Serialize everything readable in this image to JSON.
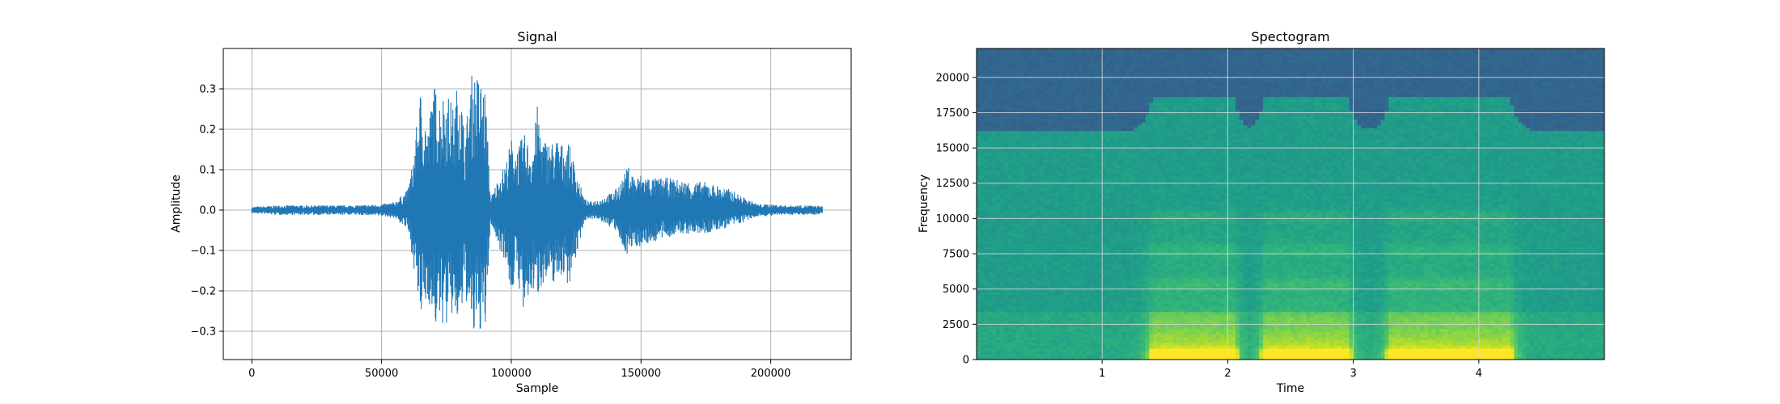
{
  "colors": {
    "signal_line": "#1f77b4",
    "grid": "#b0b0b0",
    "axes": "#000000",
    "spectrogram_low": "#31688e",
    "spectrogram_mid": "#21a685",
    "spectrogram_high": "#e8e41a"
  },
  "chart_data": [
    {
      "type": "line",
      "title": "Signal",
      "xlabel": "Sample",
      "ylabel": "Amplitude",
      "xlim": [
        -11000,
        231000
      ],
      "ylim": [
        -0.37,
        0.4
      ],
      "xticks": [
        0,
        50000,
        100000,
        150000,
        200000
      ],
      "yticks": [
        -0.3,
        -0.2,
        -0.1,
        0.0,
        0.1,
        0.2,
        0.3
      ],
      "xtick_labels": [
        "0",
        "50000",
        "100000",
        "150000",
        "200000"
      ],
      "ytick_labels": [
        "−0.3",
        "−0.2",
        "−0.1",
        "0.0",
        "0.1",
        "0.2",
        "0.3"
      ],
      "grid": true,
      "series": [
        {
          "x": [
            0,
            10000,
            20000,
            30000,
            40000,
            50000,
            55000,
            60000,
            62000,
            65000,
            68000,
            70000,
            72000,
            75000,
            78000,
            80000,
            82000,
            85000,
            88000,
            90000,
            92000,
            95000,
            98000,
            100000,
            102000,
            105000,
            108000,
            110000,
            112000,
            115000,
            118000,
            120000,
            122000,
            125000,
            128000,
            130000,
            135000,
            140000,
            143000,
            145000,
            148000,
            150000,
            155000,
            160000,
            165000,
            170000,
            175000,
            180000,
            185000,
            190000,
            195000,
            200000,
            205000,
            210000,
            215000,
            220000
          ],
          "y_max": [
            0.008,
            0.012,
            0.012,
            0.012,
            0.012,
            0.015,
            0.02,
            0.05,
            0.12,
            0.3,
            0.2,
            0.32,
            0.28,
            0.3,
            0.25,
            0.36,
            0.18,
            0.35,
            0.33,
            0.3,
            0.03,
            0.08,
            0.12,
            0.18,
            0.15,
            0.19,
            0.15,
            0.26,
            0.18,
            0.17,
            0.18,
            0.16,
            0.17,
            0.1,
            0.03,
            0.02,
            0.03,
            0.05,
            0.08,
            0.11,
            0.08,
            0.09,
            0.08,
            0.08,
            0.075,
            0.07,
            0.07,
            0.06,
            0.05,
            0.03,
            0.015,
            0.015,
            0.012,
            0.012,
            0.012,
            0.01
          ],
          "y_min": [
            -0.008,
            -0.012,
            -0.012,
            -0.012,
            -0.012,
            -0.015,
            -0.02,
            -0.05,
            -0.12,
            -0.28,
            -0.22,
            -0.3,
            -0.28,
            -0.29,
            -0.26,
            -0.31,
            -0.2,
            -0.33,
            -0.3,
            -0.31,
            -0.03,
            -0.09,
            -0.13,
            -0.22,
            -0.15,
            -0.28,
            -0.2,
            -0.22,
            -0.18,
            -0.19,
            -0.17,
            -0.16,
            -0.19,
            -0.12,
            -0.03,
            -0.02,
            -0.03,
            -0.05,
            -0.1,
            -0.11,
            -0.09,
            -0.09,
            -0.08,
            -0.07,
            -0.06,
            -0.06,
            -0.06,
            -0.05,
            -0.04,
            -0.03,
            -0.015,
            -0.015,
            -0.012,
            -0.012,
            -0.012,
            -0.01
          ]
        }
      ]
    },
    {
      "type": "heatmap",
      "title": "Spectogram",
      "xlabel": "Time",
      "ylabel": "Frequency",
      "xlim": [
        0,
        5.0
      ],
      "ylim": [
        0,
        22050
      ],
      "xticks": [
        1,
        2,
        3,
        4
      ],
      "yticks": [
        0,
        2500,
        5000,
        7500,
        10000,
        12500,
        15000,
        17500,
        20000
      ],
      "xtick_labels": [
        "1",
        "2",
        "3",
        "4"
      ],
      "ytick_labels": [
        "0",
        "2500",
        "5000",
        "7500",
        "10000",
        "12500",
        "15000",
        "17500",
        "20000"
      ],
      "grid": true,
      "colormap": "viridis",
      "high_energy_time_regions": [
        [
          1.4,
          2.05
        ],
        [
          2.3,
          2.95
        ],
        [
          3.3,
          4.25
        ]
      ],
      "cutoff_frequency_quiet": 16200,
      "cutoff_frequency_loud": 18700
    }
  ]
}
